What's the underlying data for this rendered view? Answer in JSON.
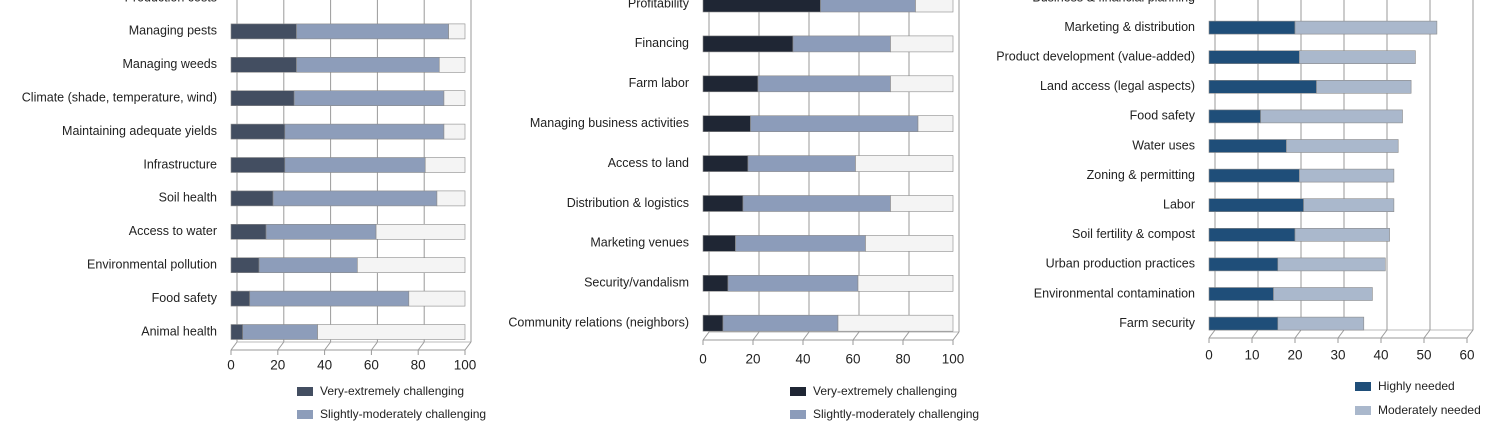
{
  "chart_data": [
    {
      "type": "bar",
      "orientation": "horizontal",
      "stacked": true,
      "categories": [
        "Production costs",
        "Managing pests",
        "Managing weeds",
        "Climate (shade, temperature, wind)",
        "Maintaining adequate yields",
        "Infrastructure",
        "Soil health",
        "Access to water",
        "Environmental pollution",
        "Food safety",
        "Animal health"
      ],
      "series": [
        {
          "name": "Very-extremely challenging",
          "color": "#434e61",
          "values": [
            null,
            28,
            28,
            27,
            23,
            23,
            18,
            15,
            12,
            8,
            5
          ]
        },
        {
          "name": "Slightly-moderately challenging",
          "color": "#8d9dba",
          "values": [
            null,
            65,
            61,
            64,
            68,
            60,
            70,
            47,
            42,
            68,
            32
          ]
        },
        {
          "color": "#f4f4f4",
          "values": [
            null,
            7,
            11,
            9,
            9,
            17,
            12,
            38,
            46,
            24,
            63
          ]
        }
      ],
      "xlim": [
        0,
        100
      ],
      "xticks": [
        0,
        20,
        40,
        60,
        80,
        100
      ],
      "grid": true
    },
    {
      "type": "bar",
      "orientation": "horizontal",
      "stacked": true,
      "categories": [
        "Profitability",
        "Financing",
        "Farm labor",
        "Managing business activities",
        "Access to land",
        "Distribution & logistics",
        "Marketing venues",
        "Security/vandalism",
        "Community relations (neighbors)"
      ],
      "series": [
        {
          "name": "Very-extremely challenging",
          "color": "#1f2634",
          "values": [
            47,
            36,
            22,
            19,
            18,
            16,
            13,
            10,
            8
          ]
        },
        {
          "name": "Slightly-moderately challenging",
          "color": "#8c9cba",
          "values": [
            38,
            39,
            53,
            67,
            43,
            59,
            52,
            52,
            46
          ]
        },
        {
          "color": "#f4f4f4",
          "values": [
            15,
            25,
            25,
            14,
            39,
            25,
            35,
            38,
            46
          ]
        }
      ],
      "xlim": [
        0,
        100
      ],
      "xticks": [
        0,
        20,
        40,
        60,
        80,
        100
      ],
      "grid": true
    },
    {
      "type": "bar",
      "orientation": "horizontal",
      "stacked": true,
      "categories": [
        "Business & financial planning",
        "Marketing & distribution",
        "Product development (value-added)",
        "Land access (legal aspects)",
        "Food safety",
        "Water uses",
        "Zoning & permitting",
        "Labor",
        "Soil fertility & compost",
        "Urban production practices",
        "Environmental contamination",
        "Farm security"
      ],
      "series": [
        {
          "name": "Highly needed",
          "color": "#1f4e79",
          "values": [
            null,
            20,
            21,
            25,
            12,
            18,
            21,
            22,
            20,
            16,
            15,
            16
          ]
        },
        {
          "name": "Moderately needed",
          "color": "#aab8cc",
          "values": [
            null,
            33,
            27,
            22,
            33,
            26,
            22,
            21,
            22,
            25,
            23,
            20
          ]
        }
      ],
      "xlim": [
        0,
        60
      ],
      "xticks": [
        0,
        10,
        20,
        30,
        40,
        50,
        60
      ],
      "grid": true
    }
  ]
}
